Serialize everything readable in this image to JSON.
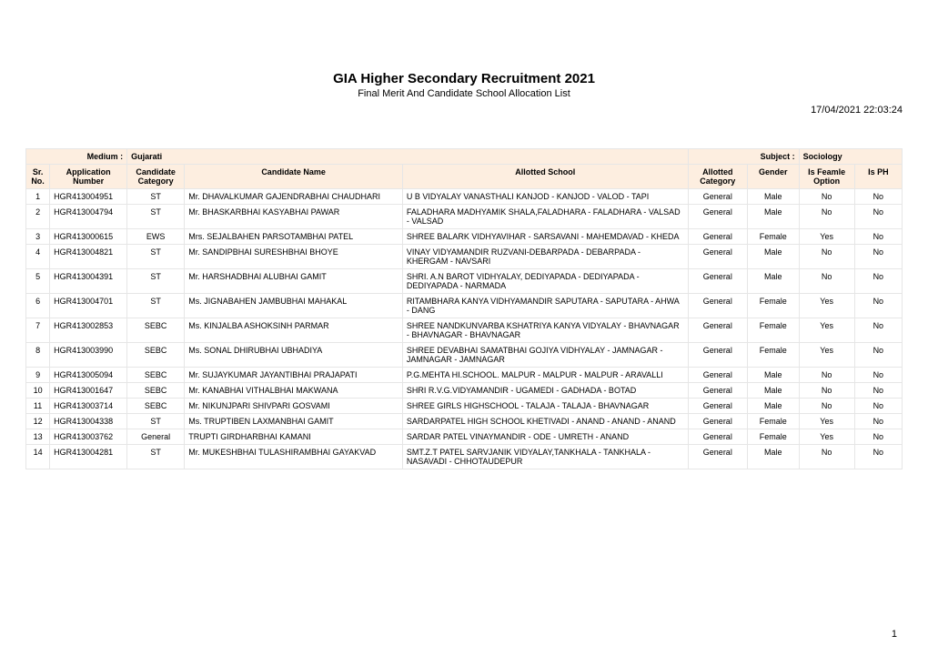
{
  "header": {
    "title": "GIA Higher Secondary Recruitment 2021",
    "subtitle": "Final Merit And Candidate School Allocation List",
    "timestamp": "17/04/2021 22:03:24"
  },
  "meta": {
    "medium_label": "Medium :",
    "medium_value": "Gujarati",
    "subject_label": "Subject :",
    "subject_value": "Sociology"
  },
  "columns": {
    "sr": "Sr. No.",
    "app": "Application Number",
    "ccat": "Candidate Category",
    "name": "Candidate Name",
    "school": "Allotted School",
    "acat": "Allotted Category",
    "gender": "Gender",
    "feamle": "Is Feamle Option",
    "ph": "Is PH"
  },
  "rows": [
    {
      "sr": "1",
      "app": "HGR413004951",
      "ccat": "ST",
      "name": "Mr. DHAVALKUMAR GAJENDRABHAI CHAUDHARI",
      "school": "U B VIDYALAY VANASTHALI KANJOD - KANJOD - VALOD - TAPI",
      "acat": "General",
      "gender": "Male",
      "feamle": "No",
      "ph": "No"
    },
    {
      "sr": "2",
      "app": "HGR413004794",
      "ccat": "ST",
      "name": "Mr. BHASKARBHAI KASYABHAI PAWAR",
      "school": "FALADHARA MADHYAMIK SHALA,FALADHARA - FALADHARA - VALSAD - VALSAD",
      "acat": "General",
      "gender": "Male",
      "feamle": "No",
      "ph": "No"
    },
    {
      "sr": "3",
      "app": "HGR413000615",
      "ccat": "EWS",
      "name": "Mrs. SEJALBAHEN PARSOTAMBHAI PATEL",
      "school": "SHREE BALARK VIDHYAVIHAR - SARSAVANI - MAHEMDAVAD - KHEDA",
      "acat": "General",
      "gender": "Female",
      "feamle": "Yes",
      "ph": "No"
    },
    {
      "sr": "4",
      "app": "HGR413004821",
      "ccat": "ST",
      "name": "Mr. SANDIPBHAI SURESHBHAI BHOYE",
      "school": "VINAY VIDYAMANDIR RUZVANI-DEBARPADA - DEBARPADA - KHERGAM - NAVSARI",
      "acat": "General",
      "gender": "Male",
      "feamle": "No",
      "ph": "No"
    },
    {
      "sr": "5",
      "app": "HGR413004391",
      "ccat": "ST",
      "name": "Mr. HARSHADBHAI ALUBHAI GAMIT",
      "school": "SHRI. A.N BAROT VIDHYALAY, DEDIYAPADA - DEDIYAPADA - DEDIYAPADA - NARMADA",
      "acat": "General",
      "gender": "Male",
      "feamle": "No",
      "ph": "No"
    },
    {
      "sr": "6",
      "app": "HGR413004701",
      "ccat": "ST",
      "name": "Ms. JIGNABAHEN JAMBUBHAI MAHAKAL",
      "school": "RITAMBHARA KANYA VIDHYAMANDIR SAPUTARA - SAPUTARA - AHWA - DANG",
      "acat": "General",
      "gender": "Female",
      "feamle": "Yes",
      "ph": "No"
    },
    {
      "sr": "7",
      "app": "HGR413002853",
      "ccat": "SEBC",
      "name": "Ms. KINJALBA ASHOKSINH PARMAR",
      "school": "SHREE NANDKUNVARBA KSHATRIYA KANYA VIDYALAY - BHAVNAGAR - BHAVNAGAR - BHAVNAGAR",
      "acat": "General",
      "gender": "Female",
      "feamle": "Yes",
      "ph": "No"
    },
    {
      "sr": "8",
      "app": "HGR413003990",
      "ccat": "SEBC",
      "name": "Ms. SONAL DHIRUBHAI UBHADIYA",
      "school": "SHREE DEVABHAI SAMATBHAI GOJIYA VIDHYALAY - JAMNAGAR - JAMNAGAR - JAMNAGAR",
      "acat": "General",
      "gender": "Female",
      "feamle": "Yes",
      "ph": "No"
    },
    {
      "sr": "9",
      "app": "HGR413005094",
      "ccat": "SEBC",
      "name": "Mr. SUJAYKUMAR JAYANTIBHAI PRAJAPATI",
      "school": "P.G.MEHTA HI.SCHOOL. MALPUR - MALPUR - MALPUR - ARAVALLI",
      "acat": "General",
      "gender": "Male",
      "feamle": "No",
      "ph": "No"
    },
    {
      "sr": "10",
      "app": "HGR413001647",
      "ccat": "SEBC",
      "name": "Mr. KANABHAI VITHALBHAI MAKWANA",
      "school": "SHRI R.V.G.VIDYAMANDIR - UGAMEDI - GADHADA - BOTAD",
      "acat": "General",
      "gender": "Male",
      "feamle": "No",
      "ph": "No"
    },
    {
      "sr": "11",
      "app": "HGR413003714",
      "ccat": "SEBC",
      "name": "Mr. NIKUNJPARI SHIVPARI GOSVAMI",
      "school": "SHREE GIRLS HIGHSCHOOL - TALAJA - TALAJA - BHAVNAGAR",
      "acat": "General",
      "gender": "Male",
      "feamle": "No",
      "ph": "No"
    },
    {
      "sr": "12",
      "app": "HGR413004338",
      "ccat": "ST",
      "name": "Ms. TRUPTIBEN LAXMANBHAI GAMIT",
      "school": "SARDARPATEL HIGH SCHOOL KHETIVADI - ANAND - ANAND - ANAND",
      "acat": "General",
      "gender": "Female",
      "feamle": "Yes",
      "ph": "No"
    },
    {
      "sr": "13",
      "app": "HGR413003762",
      "ccat": "General",
      "name": "TRUPTI GIRDHARBHAI KAMANI",
      "school": "SARDAR PATEL VINAYMANDIR - ODE - UMRETH - ANAND",
      "acat": "General",
      "gender": "Female",
      "feamle": "Yes",
      "ph": "No"
    },
    {
      "sr": "14",
      "app": "HGR413004281",
      "ccat": "ST",
      "name": "Mr. MUKESHBHAI TULASHIRAMBHAI GAYAKVAD",
      "school": "SMT.Z.T PATEL SARVJANIK VIDYALAY,TANKHALA - TANKHALA - NASAVADI - CHHOTAUDEPUR",
      "acat": "General",
      "gender": "Male",
      "feamle": "No",
      "ph": "No"
    }
  ],
  "page_number": "1",
  "style": {
    "header_bg": "#fdeee0",
    "border_color": "#e6e6e6",
    "title_fontsize": 15,
    "body_fontsize": 9
  }
}
